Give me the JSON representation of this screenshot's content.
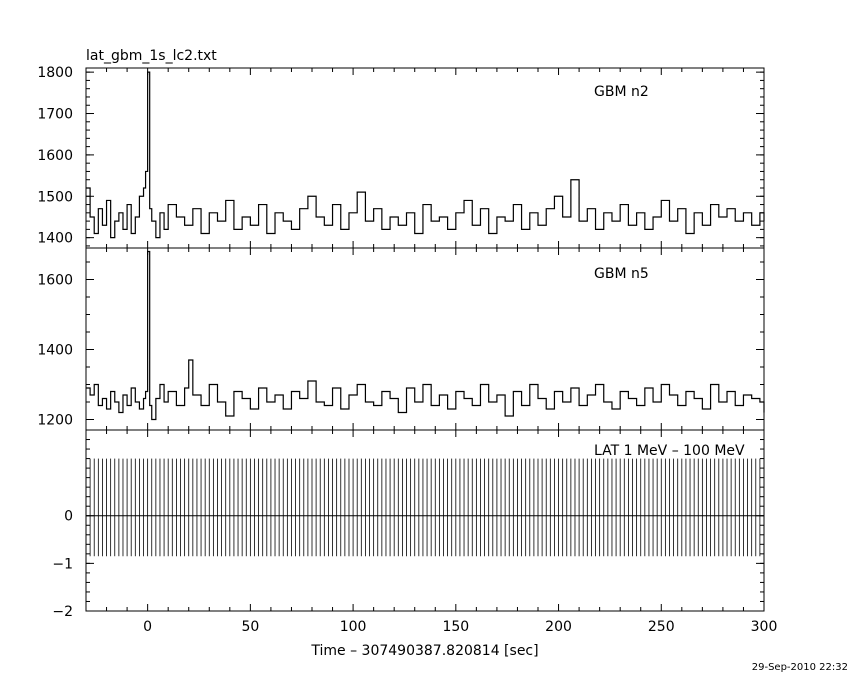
{
  "title": "lat_gbm_1s_lc2.txt",
  "timestamp": "29-Sep-2010 22:32",
  "chart_data": [
    {
      "type": "line",
      "label": "GBM n2",
      "xlim": [
        -30,
        300
      ],
      "ylim": [
        1375,
        1810
      ],
      "yticks": [
        "1400",
        "1500",
        "1600",
        "1700",
        "1800"
      ],
      "series": [
        {
          "x": [
            -30,
            -28,
            -26,
            -24,
            -22,
            -20,
            -18,
            -16,
            -14,
            -12,
            -10,
            -8,
            -6,
            -4,
            -2,
            -1,
            0,
            1,
            2,
            4,
            6,
            8,
            10,
            14,
            18,
            22,
            26,
            30,
            34,
            38,
            42,
            46,
            50,
            54,
            58,
            62,
            66,
            70,
            74,
            78,
            82,
            86,
            90,
            94,
            98,
            102,
            106,
            110,
            114,
            118,
            122,
            126,
            130,
            134,
            138,
            142,
            146,
            150,
            154,
            158,
            162,
            166,
            170,
            174,
            178,
            182,
            186,
            190,
            194,
            198,
            202,
            206,
            210,
            214,
            218,
            222,
            226,
            230,
            234,
            238,
            242,
            246,
            250,
            254,
            258,
            262,
            266,
            270,
            274,
            278,
            282,
            286,
            290,
            294,
            298,
            300
          ],
          "y": [
            1520,
            1450,
            1410,
            1470,
            1430,
            1490,
            1400,
            1440,
            1460,
            1420,
            1480,
            1410,
            1450,
            1500,
            1520,
            1560,
            1800,
            1470,
            1440,
            1400,
            1460,
            1420,
            1480,
            1450,
            1430,
            1470,
            1410,
            1460,
            1440,
            1490,
            1420,
            1450,
            1430,
            1480,
            1410,
            1460,
            1440,
            1420,
            1470,
            1500,
            1450,
            1430,
            1480,
            1420,
            1460,
            1510,
            1440,
            1470,
            1420,
            1450,
            1430,
            1460,
            1410,
            1480,
            1440,
            1450,
            1420,
            1460,
            1490,
            1430,
            1470,
            1410,
            1450,
            1440,
            1480,
            1420,
            1460,
            1430,
            1470,
            1500,
            1450,
            1540,
            1440,
            1470,
            1420,
            1460,
            1440,
            1480,
            1430,
            1460,
            1420,
            1450,
            1490,
            1440,
            1470,
            1410,
            1460,
            1430,
            1480,
            1450,
            1470,
            1440,
            1460,
            1430,
            1460,
            1440
          ]
        }
      ]
    },
    {
      "type": "line",
      "label": "GBM n5",
      "xlim": [
        -30,
        300
      ],
      "ylim": [
        1170,
        1690
      ],
      "yticks": [
        "1200",
        "1400",
        "1600"
      ],
      "series": [
        {
          "x": [
            -30,
            -28,
            -26,
            -24,
            -22,
            -20,
            -18,
            -16,
            -14,
            -12,
            -10,
            -8,
            -6,
            -4,
            -2,
            -1,
            0,
            1,
            2,
            4,
            6,
            8,
            10,
            14,
            18,
            20,
            22,
            26,
            30,
            34,
            38,
            42,
            46,
            50,
            54,
            58,
            62,
            66,
            70,
            74,
            78,
            82,
            86,
            90,
            94,
            98,
            102,
            106,
            110,
            114,
            118,
            122,
            126,
            130,
            134,
            138,
            142,
            146,
            150,
            154,
            158,
            162,
            166,
            170,
            174,
            178,
            182,
            186,
            190,
            194,
            198,
            202,
            206,
            210,
            214,
            218,
            222,
            226,
            230,
            234,
            238,
            242,
            246,
            250,
            254,
            258,
            262,
            266,
            270,
            274,
            278,
            282,
            286,
            290,
            294,
            298,
            300
          ],
          "y": [
            1290,
            1270,
            1300,
            1240,
            1260,
            1230,
            1280,
            1250,
            1220,
            1270,
            1240,
            1290,
            1250,
            1230,
            1260,
            1280,
            1680,
            1240,
            1200,
            1260,
            1300,
            1250,
            1280,
            1240,
            1290,
            1370,
            1270,
            1240,
            1300,
            1250,
            1210,
            1280,
            1260,
            1230,
            1290,
            1250,
            1270,
            1230,
            1280,
            1260,
            1310,
            1250,
            1240,
            1290,
            1230,
            1270,
            1300,
            1250,
            1240,
            1280,
            1260,
            1220,
            1290,
            1250,
            1300,
            1240,
            1270,
            1230,
            1280,
            1260,
            1240,
            1300,
            1250,
            1270,
            1210,
            1280,
            1240,
            1300,
            1260,
            1230,
            1280,
            1250,
            1290,
            1240,
            1270,
            1300,
            1250,
            1230,
            1280,
            1260,
            1240,
            1290,
            1250,
            1300,
            1270,
            1240,
            1280,
            1260,
            1230,
            1300,
            1250,
            1280,
            1240,
            1270,
            1260,
            1250,
            1220
          ]
        }
      ]
    },
    {
      "type": "bar",
      "label": "LAT 1 MeV - 100 MeV",
      "label_display": "LAT  1 MeV – 100 MeV",
      "xlim": [
        -30,
        300
      ],
      "ylim": [
        -2,
        1.8
      ],
      "yticks": [
        "−2",
        "−1",
        "0"
      ],
      "bar_top": 1.2,
      "bar_bottom": -0.85,
      "bin_width": 1,
      "xlabel": "Time – 307490387.820814 [sec]",
      "xticks": [
        "0",
        "50",
        "100",
        "150",
        "200",
        "250",
        "300"
      ]
    }
  ]
}
